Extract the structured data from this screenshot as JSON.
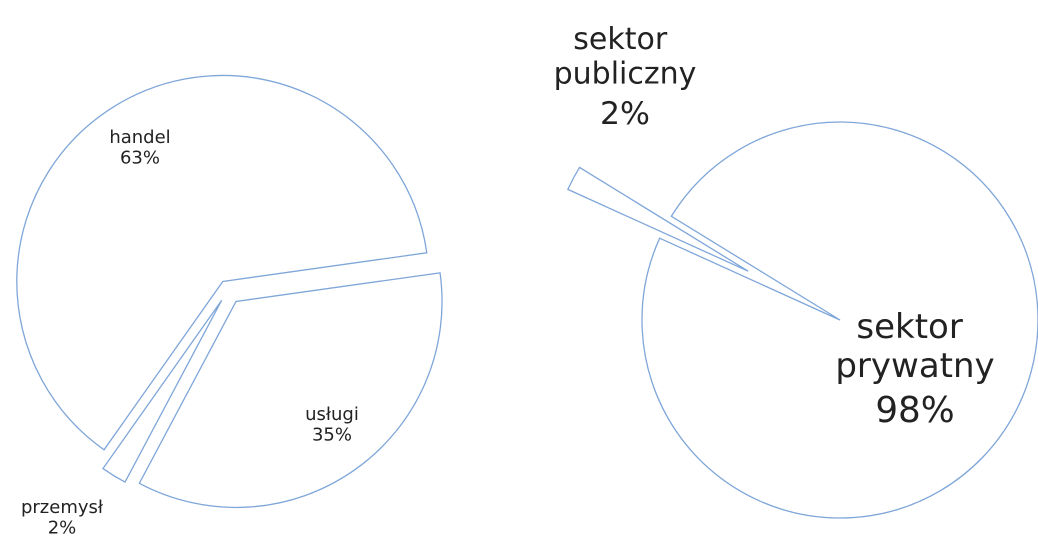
{
  "chart_data": [
    {
      "type": "pie",
      "categories": [
        "handel",
        "przemysł",
        "usługi"
      ],
      "values": [
        63,
        2,
        35
      ],
      "value_labels": [
        "63%",
        "2%",
        "35%"
      ],
      "color": "#7fa6d9"
    },
    {
      "type": "pie",
      "categories": [
        "sektor publiczny",
        "sektor prywatny"
      ],
      "values": [
        2,
        98
      ],
      "value_labels": [
        "2%",
        "98%"
      ],
      "color": "#7fa6d9"
    }
  ]
}
